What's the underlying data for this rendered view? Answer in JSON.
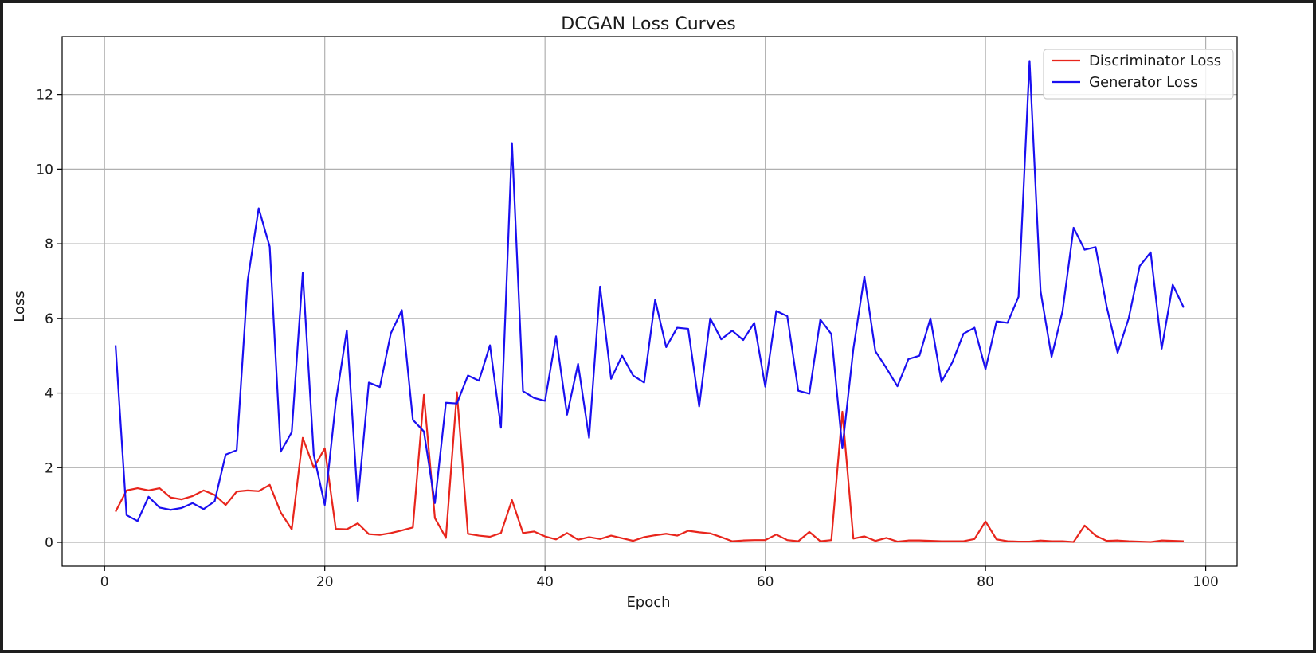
{
  "chart_data": {
    "type": "line",
    "title": "DCGAN Loss Curves",
    "xlabel": "Epoch",
    "ylabel": "Loss",
    "xlim": [
      -3.85,
      102.85
    ],
    "ylim": [
      -0.64,
      13.55
    ],
    "xticks": [
      0,
      20,
      40,
      60,
      80,
      100
    ],
    "yticks": [
      0,
      2,
      4,
      6,
      8,
      10,
      12
    ],
    "grid": true,
    "legend_position": "top-right",
    "x": [
      1,
      2,
      3,
      4,
      5,
      6,
      7,
      8,
      9,
      10,
      11,
      12,
      13,
      14,
      15,
      16,
      17,
      18,
      19,
      20,
      21,
      22,
      23,
      24,
      25,
      26,
      27,
      28,
      29,
      30,
      31,
      32,
      33,
      34,
      35,
      36,
      37,
      38,
      39,
      40,
      41,
      42,
      43,
      44,
      45,
      46,
      47,
      48,
      49,
      50,
      51,
      52,
      53,
      54,
      55,
      56,
      57,
      58,
      59,
      60,
      61,
      62,
      63,
      64,
      65,
      66,
      67,
      68,
      69,
      70,
      71,
      72,
      73,
      74,
      75,
      76,
      77,
      78,
      79,
      80,
      81,
      82,
      83,
      84,
      85,
      86,
      87,
      88,
      89,
      90,
      91,
      92,
      93,
      94,
      95,
      96,
      97,
      98
    ],
    "series": [
      {
        "name": "Discriminator Loss",
        "color": "#e8251c",
        "values": [
          0.82,
          1.39,
          1.45,
          1.39,
          1.45,
          1.2,
          1.15,
          1.24,
          1.39,
          1.27,
          1.0,
          1.36,
          1.39,
          1.37,
          1.54,
          0.8,
          0.35,
          2.8,
          2.0,
          2.52,
          0.36,
          0.35,
          0.51,
          0.22,
          0.2,
          0.25,
          0.32,
          0.4,
          3.95,
          0.65,
          0.12,
          4.02,
          0.23,
          0.18,
          0.15,
          0.25,
          1.13,
          0.25,
          0.29,
          0.16,
          0.08,
          0.25,
          0.07,
          0.14,
          0.09,
          0.18,
          0.11,
          0.04,
          0.14,
          0.19,
          0.23,
          0.18,
          0.31,
          0.27,
          0.24,
          0.14,
          0.03,
          0.05,
          0.06,
          0.06,
          0.21,
          0.06,
          0.03,
          0.28,
          0.03,
          0.06,
          3.5,
          0.1,
          0.16,
          0.04,
          0.12,
          0.02,
          0.05,
          0.05,
          0.04,
          0.03,
          0.03,
          0.03,
          0.09,
          0.56,
          0.08,
          0.03,
          0.02,
          0.02,
          0.05,
          0.03,
          0.03,
          0.01,
          0.45,
          0.18,
          0.04,
          0.05,
          0.03,
          0.02,
          0.01,
          0.05,
          0.04,
          0.03
        ]
      },
      {
        "name": "Generator Loss",
        "color": "#1a0ff0",
        "values": [
          5.28,
          0.73,
          0.57,
          1.22,
          0.93,
          0.87,
          0.92,
          1.05,
          0.89,
          1.1,
          2.35,
          2.47,
          7.02,
          8.95,
          7.92,
          2.43,
          2.95,
          7.22,
          2.35,
          1.0,
          3.75,
          5.68,
          1.1,
          4.28,
          4.16,
          5.6,
          6.22,
          3.28,
          2.97,
          1.05,
          3.74,
          3.72,
          4.47,
          4.33,
          5.28,
          3.07,
          10.7,
          4.05,
          3.87,
          3.79,
          5.52,
          3.42,
          4.78,
          2.8,
          6.85,
          4.38,
          5.0,
          4.47,
          4.28,
          6.5,
          5.23,
          5.75,
          5.72,
          3.64,
          6.0,
          5.44,
          5.67,
          5.42,
          5.88,
          4.17,
          6.2,
          6.06,
          4.06,
          3.98,
          5.97,
          5.58,
          2.52,
          5.18,
          7.12,
          5.12,
          4.67,
          4.18,
          4.91,
          5.0,
          6.0,
          4.3,
          4.83,
          5.59,
          5.75,
          4.64,
          5.92,
          5.88,
          6.58,
          12.9,
          6.73,
          4.97,
          6.2,
          8.43,
          7.84,
          7.91,
          6.32,
          5.08,
          6.0,
          7.4,
          7.77,
          5.19,
          6.9,
          6.29
        ]
      }
    ]
  }
}
